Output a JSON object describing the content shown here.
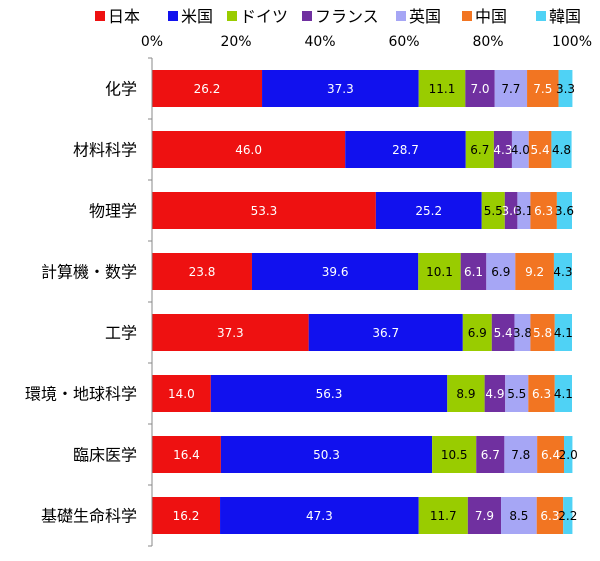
{
  "chart_data": {
    "type": "bar",
    "orientation": "horizontal",
    "stacked": "percent",
    "title": "",
    "xlabel": "",
    "ylabel": "",
    "xlim": [
      0,
      100
    ],
    "x_ticks": [
      "0%",
      "20%",
      "40%",
      "60%",
      "80%",
      "100%"
    ],
    "grid": false,
    "legend_position": "top",
    "categories": [
      "化学",
      "材料科学",
      "物理学",
      "計算機・数学",
      "工学",
      "環境・地球科学",
      "臨床医学",
      "基礎生命科学"
    ],
    "series": [
      {
        "name": "日本",
        "color": "#ee1111",
        "label_color": "#ffffff",
        "values": [
          26.2,
          46.0,
          53.3,
          23.8,
          37.3,
          14.0,
          16.4,
          16.2
        ]
      },
      {
        "name": "米国",
        "color": "#1111ee",
        "label_color": "#ffffff",
        "values": [
          37.3,
          28.7,
          25.2,
          39.6,
          36.7,
          56.3,
          50.3,
          47.3
        ]
      },
      {
        "name": "ドイツ",
        "color": "#99cc00",
        "label_color": "#000000",
        "values": [
          11.1,
          6.7,
          5.5,
          10.1,
          6.9,
          8.9,
          10.5,
          11.7
        ]
      },
      {
        "name": "フランス",
        "color": "#7030a0",
        "label_color": "#ffffff",
        "values": [
          7.0,
          4.3,
          3.0,
          6.1,
          5.4,
          4.9,
          6.7,
          7.9
        ]
      },
      {
        "name": "英国",
        "color": "#a6a6f5",
        "label_color": "#000000",
        "values": [
          7.7,
          4.0,
          3.1,
          6.9,
          3.8,
          5.5,
          7.8,
          8.5
        ]
      },
      {
        "name": "中国",
        "color": "#f27522",
        "label_color": "#ffffff",
        "values": [
          7.5,
          5.4,
          6.3,
          9.2,
          5.8,
          6.3,
          6.4,
          6.3
        ]
      },
      {
        "name": "韓国",
        "color": "#4fd2f5",
        "label_color": "#000000",
        "values": [
          3.3,
          4.8,
          3.6,
          4.3,
          4.1,
          4.1,
          2.0,
          2.2
        ]
      }
    ],
    "data_labels": [
      [
        "26.2",
        "37.3",
        "11.1",
        "7.0",
        "7.7",
        "7.5",
        "3.3"
      ],
      [
        "46.0",
        "28.7",
        "6.7",
        "4.3",
        "4.0",
        "5.4",
        "4.8"
      ],
      [
        "53.3",
        "25.2",
        "5.5",
        "3.0",
        "3.1",
        "6.3",
        "3.6"
      ],
      [
        "23.8",
        "39.6",
        "10.1",
        "6.1",
        "6.9",
        "9.2",
        "4.3"
      ],
      [
        "37.3",
        "36.7",
        "6.9",
        "5.4",
        "3.8",
        "5.8",
        "4.1"
      ],
      [
        "14.0",
        "56.3",
        "8.9",
        "4.9",
        "5.5",
        "6.3",
        "4.1"
      ],
      [
        "16.4",
        "50.3",
        "10.5",
        "6.7",
        "7.8",
        "6.4",
        "2.0"
      ],
      [
        "16.2",
        "47.3",
        "11.7",
        "7.9",
        "8.5",
        "6.3",
        "2.2"
      ]
    ]
  }
}
